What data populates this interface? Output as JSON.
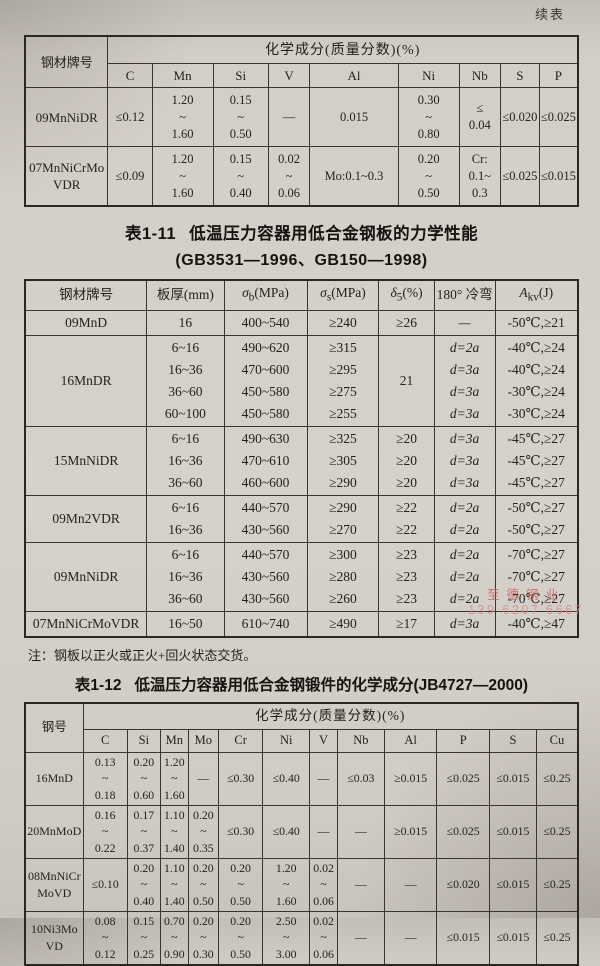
{
  "page": {
    "continued_label": "续表",
    "note": "注：钢板以正火或正火+回火状态交货。",
    "watermark": {
      "company": "至德钢业",
      "phone": "139 6207 6667"
    }
  },
  "table1": {
    "corner": "钢材牌号",
    "group": "化学成分(质量分数)(%)",
    "cols": [
      "C",
      "Mn",
      "Si",
      "V",
      "Al",
      "Ni",
      "Nb",
      "S",
      "P"
    ],
    "rows": [
      [
        "09MnNiDR",
        "≤0.12",
        [
          "1.20",
          "~",
          "1.60"
        ],
        [
          "0.15",
          "~",
          "0.50"
        ],
        "—",
        "0.015",
        [
          "0.30",
          "~",
          "0.80"
        ],
        [
          "≤",
          "0.04"
        ],
        "≤0.020",
        "≤0.025"
      ],
      [
        [
          "07MnNiCrMo",
          "VDR"
        ],
        "≤0.09",
        [
          "1.20",
          "~",
          "1.60"
        ],
        [
          "0.15",
          "~",
          "0.40"
        ],
        [
          "0.02",
          "~",
          "0.06"
        ],
        "Mo:0.1~0.3",
        [
          "0.20",
          "~",
          "0.50"
        ],
        [
          "Cr:",
          "0.1~",
          "0.3"
        ],
        "≤0.025",
        "≤0.015"
      ]
    ]
  },
  "title11": {
    "label": "表1-11",
    "text": "低温压力容器用低合金钢板的力学性能",
    "std": "(GB3531—1996、GB150—1998)"
  },
  "table2": {
    "col_grade": "钢材牌号",
    "col_thickness": "板厚(mm)",
    "sigma_b": {
      "sym": "σ",
      "sub": "b",
      "unit": "(MPa)"
    },
    "sigma_s": {
      "sym": "σ",
      "sub": "s",
      "unit": "(MPa)"
    },
    "delta": {
      "sym": "δ",
      "sub": "5",
      "unit": "(%)"
    },
    "col_bend": "180° 冷弯",
    "akv": {
      "sym": "A",
      "sub": "kv",
      "unit": "(J)"
    },
    "rows": [
      [
        "09MnD",
        "16",
        "400~540",
        "≥240",
        "≥26",
        "—",
        "-50℃,≥21"
      ],
      [
        "16MnDR",
        [
          "6~16",
          "16~36",
          "36~60",
          "60~100"
        ],
        [
          "490~620",
          "470~600",
          "450~580",
          "450~580"
        ],
        [
          "≥315",
          "≥295",
          "≥275",
          "≥255"
        ],
        "21",
        [
          "d=2a",
          "d=3a",
          "d=3a",
          "d=3a"
        ],
        [
          "-40℃,≥24",
          "-40℃,≥24",
          "-30℃,≥24",
          "-30℃,≥24"
        ]
      ],
      [
        "15MnNiDR",
        [
          "6~16",
          "16~36",
          "36~60"
        ],
        [
          "490~630",
          "470~610",
          "460~600"
        ],
        [
          "≥325",
          "≥305",
          "≥290"
        ],
        [
          "≥20",
          "≥20",
          "≥20"
        ],
        [
          "d=3a",
          "d=3a",
          "d=3a"
        ],
        [
          "-45℃,≥27",
          "-45℃,≥27",
          "-45℃,≥27"
        ]
      ],
      [
        "09Mn2VDR",
        [
          "6~16",
          "16~36"
        ],
        [
          "440~570",
          "430~560"
        ],
        [
          "≥290",
          "≥270"
        ],
        [
          "≥22",
          "≥22"
        ],
        [
          "d=2a",
          "d=2a"
        ],
        [
          "-50℃,≥27",
          "-50℃,≥27"
        ]
      ],
      [
        "09MnNiDR",
        [
          "6~16",
          "16~36",
          "36~60"
        ],
        [
          "440~570",
          "430~560",
          "430~560"
        ],
        [
          "≥300",
          "≥280",
          "≥260"
        ],
        [
          "≥23",
          "≥23",
          "≥23"
        ],
        [
          "d=2a",
          "d=2a",
          "d=2a"
        ],
        [
          "-70℃,≥27",
          "-70℃,≥27",
          "-70℃,≥27"
        ]
      ],
      [
        "07MnNiCrMoVDR",
        "16~50",
        "610~740",
        "≥490",
        "≥17",
        "d=3a",
        "-40℃,≥47"
      ]
    ]
  },
  "title12": {
    "label": "表1-12",
    "text": "低温压力容器用低合金钢锻件的化学成分(JB4727—2000)"
  },
  "table3": {
    "corner": "钢号",
    "group": "化学成分(质量分数)(%)",
    "cols": [
      "C",
      "Si",
      "Mn",
      "Mo",
      "Cr",
      "Ni",
      "V",
      "Nb",
      "Al",
      "P",
      "S",
      "Cu"
    ],
    "rows": [
      [
        "16MnD",
        [
          "0.13",
          "~",
          "0.18"
        ],
        [
          "0.20",
          "~",
          "0.60"
        ],
        [
          "1.20",
          "~",
          "1.60"
        ],
        "—",
        "≤0.30",
        "≤0.40",
        "—",
        "≤0.03",
        "≥0.015",
        "≤0.025",
        "≤0.015",
        "≤0.25"
      ],
      [
        "20MnMoD",
        [
          "0.16",
          "~",
          "0.22"
        ],
        [
          "0.17",
          "~",
          "0.37"
        ],
        [
          "1.10",
          "~",
          "1.40"
        ],
        [
          "0.20",
          "~",
          "0.35"
        ],
        "≤0.30",
        "≤0.40",
        "—",
        "—",
        "≥0.015",
        "≤0.025",
        "≤0.015",
        "≤0.25"
      ],
      [
        [
          "08MnNiCr",
          "MoVD"
        ],
        "≤0.10",
        [
          "0.20",
          "~",
          "0.40"
        ],
        [
          "1.10",
          "~",
          "1.40"
        ],
        [
          "0.20",
          "~",
          "0.50"
        ],
        [
          "0.20",
          "~",
          "0.50"
        ],
        [
          "1.20",
          "~",
          "1.60"
        ],
        [
          "0.02",
          "~",
          "0.06"
        ],
        "—",
        "—",
        "≤0.020",
        "≤0.015",
        "≤0.25"
      ],
      [
        [
          "10Ni3Mo",
          "VD"
        ],
        [
          "0.08",
          "~",
          "0.12"
        ],
        [
          "0.15",
          "~",
          "0.25"
        ],
        [
          "0.70",
          "~",
          "0.90"
        ],
        [
          "0.20",
          "~",
          "0.30"
        ],
        [
          "0.20",
          "~",
          "0.50"
        ],
        [
          "2.50",
          "~",
          "3.00"
        ],
        [
          "0.02",
          "~",
          "0.06"
        ],
        "—",
        "—",
        "≤0.015",
        "≤0.015",
        "≤0.25"
      ]
    ]
  }
}
